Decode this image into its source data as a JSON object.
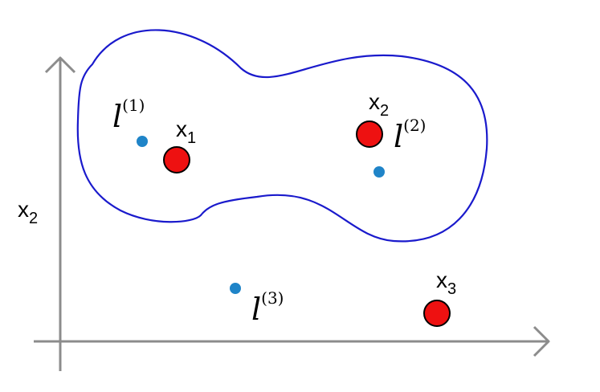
{
  "axes": {
    "y_label": {
      "base": "x",
      "sub": "2"
    },
    "color": "#8c8c8c"
  },
  "region": {
    "stroke": "#1a1acc"
  },
  "points": [
    {
      "id": "x1",
      "base": "x",
      "sub": "1",
      "color": "#ee1111"
    },
    {
      "id": "x2",
      "base": "x",
      "sub": "2",
      "color": "#ee1111"
    },
    {
      "id": "x3",
      "base": "x",
      "sub": "3",
      "color": "#ee1111"
    }
  ],
  "landmarks": [
    {
      "id": "l1",
      "base": "l",
      "sup": "(1)",
      "color": "#1f84c8"
    },
    {
      "id": "l2",
      "base": "l",
      "sup": "(2)",
      "color": "#1f84c8"
    },
    {
      "id": "l3",
      "base": "l",
      "sup": "(3)",
      "color": "#1f84c8"
    }
  ]
}
